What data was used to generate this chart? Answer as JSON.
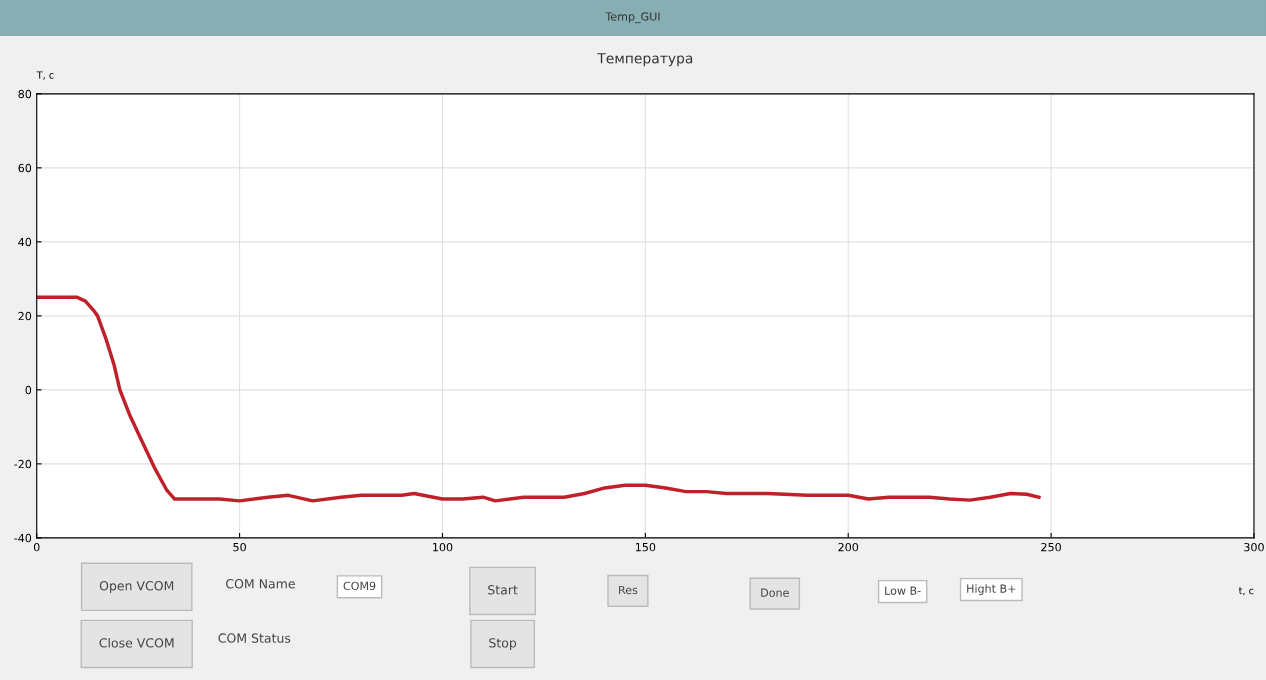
{
  "chart_data": {
    "type": "line",
    "title": "Температура",
    "xlabel": "t, c",
    "ylabel": "T, c",
    "x": [
      0,
      5,
      10,
      12,
      14,
      15,
      17,
      19,
      20.5,
      23,
      26,
      29,
      32,
      34,
      40,
      45,
      50,
      57,
      62,
      68,
      75,
      80,
      90,
      93,
      100,
      105,
      110,
      113,
      120,
      130,
      135,
      140,
      145,
      150,
      155,
      160,
      165,
      170,
      180,
      190,
      200,
      205,
      210,
      220,
      225,
      230,
      235,
      240,
      244,
      247
    ],
    "series": [
      {
        "color": "#c0202a",
        "values": [
          25,
          25,
          25,
          24,
          21.5,
          20,
          14,
          7,
          0,
          -7,
          -14,
          -21,
          -27,
          -29.5,
          -29.5,
          -29.5,
          -30,
          -29,
          -28.5,
          -30,
          -29,
          -28.5,
          -28.5,
          -28,
          -29.5,
          -29.5,
          -29,
          -30,
          -29,
          -29,
          -28,
          -26.5,
          -25.8,
          -25.8,
          -26.5,
          -27.5,
          -27.5,
          -28,
          -28,
          -28.5,
          -28.5,
          -29.5,
          -29,
          -29,
          -29.5,
          -29.8,
          -29,
          -28,
          -28.2,
          -29
        ]
      }
    ],
    "xlim": [
      0,
      300
    ],
    "xticks": [
      0,
      50,
      100,
      150,
      200,
      250,
      300
    ],
    "ylim": [
      -40,
      80
    ],
    "yticks": [
      -40,
      -20,
      0,
      20,
      40,
      60,
      80
    ],
    "grid": true,
    "line_style": "solid",
    "marker": "none",
    "annotations": [
      "Temp_GUI",
      "Open VCOM",
      "Close VCOM",
      "COM Name",
      "COM9",
      "COM Status",
      "Start",
      "Stop",
      "Res",
      "Done",
      "Low B-",
      "Hight B+"
    ]
  }
}
